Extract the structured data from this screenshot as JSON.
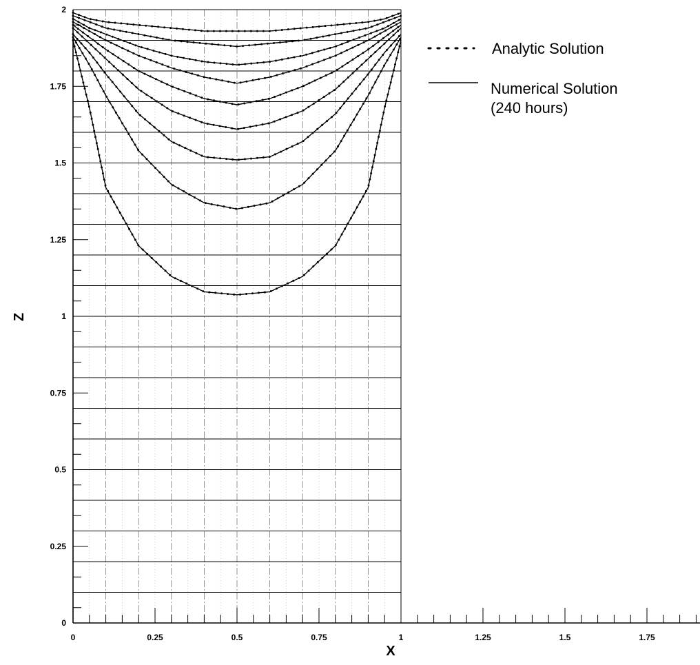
{
  "chart_data": {
    "type": "line",
    "title": "",
    "xlabel": "X",
    "ylabel": "Z",
    "xlim": [
      0,
      2
    ],
    "ylim": [
      0,
      2
    ],
    "x_ticks": [
      "0",
      "0.25",
      "0.5",
      "0.75",
      "1",
      "1.25",
      "1.5",
      "1.75"
    ],
    "y_ticks": [
      "0",
      "0.25",
      "0.5",
      "0.75",
      "1",
      "1.25",
      "1.5",
      "1.75",
      "2"
    ],
    "grid": true,
    "legend_position": "top-right",
    "legend": {
      "analytic": "Analytic Solution",
      "numerical_line1": "Numerical Solution",
      "numerical_line2": "(240 hours)"
    },
    "x": [
      0,
      0.05,
      0.1,
      0.2,
      0.3,
      0.4,
      0.5,
      0.6,
      0.7,
      0.8,
      0.9,
      0.95,
      1
    ],
    "series": [
      {
        "values": [
          1.99,
          1.97,
          1.96,
          1.95,
          1.94,
          1.93,
          1.93,
          1.93,
          1.94,
          1.95,
          1.96,
          1.97,
          1.99
        ]
      },
      {
        "values": [
          1.98,
          1.96,
          1.94,
          1.92,
          1.9,
          1.89,
          1.88,
          1.89,
          1.9,
          1.92,
          1.94,
          1.96,
          1.98
        ]
      },
      {
        "values": [
          1.97,
          1.94,
          1.92,
          1.88,
          1.85,
          1.83,
          1.82,
          1.83,
          1.85,
          1.88,
          1.92,
          1.94,
          1.97
        ]
      },
      {
        "values": [
          1.96,
          1.93,
          1.9,
          1.85,
          1.81,
          1.78,
          1.76,
          1.78,
          1.81,
          1.85,
          1.9,
          1.93,
          1.96
        ]
      },
      {
        "values": [
          1.95,
          1.91,
          1.87,
          1.8,
          1.75,
          1.71,
          1.69,
          1.71,
          1.75,
          1.8,
          1.87,
          1.91,
          1.95
        ]
      },
      {
        "values": [
          1.94,
          1.89,
          1.84,
          1.74,
          1.67,
          1.63,
          1.61,
          1.63,
          1.67,
          1.74,
          1.84,
          1.89,
          1.94
        ]
      },
      {
        "values": [
          1.92,
          1.86,
          1.79,
          1.66,
          1.57,
          1.52,
          1.51,
          1.52,
          1.57,
          1.66,
          1.79,
          1.86,
          1.92
        ]
      },
      {
        "values": [
          1.91,
          1.82,
          1.72,
          1.54,
          1.43,
          1.37,
          1.35,
          1.37,
          1.43,
          1.54,
          1.72,
          1.82,
          1.91
        ]
      },
      {
        "values": [
          1.9,
          1.68,
          1.42,
          1.23,
          1.13,
          1.08,
          1.07,
          1.08,
          1.13,
          1.23,
          1.42,
          1.68,
          1.9
        ]
      }
    ]
  }
}
